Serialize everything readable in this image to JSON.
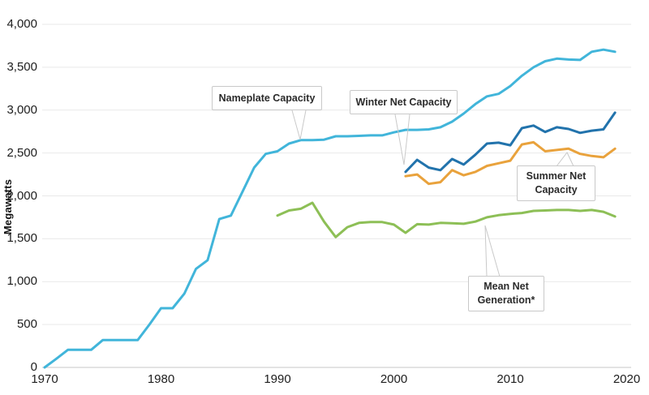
{
  "chart_data": {
    "type": "line",
    "title": "",
    "xlabel": "",
    "ylabel": "Megawatts",
    "xlim": [
      1970,
      2020
    ],
    "ylim": [
      0,
      4000
    ],
    "grid": "horizontal",
    "legend_position": "inline-callout-labels",
    "y_ticks": [
      {
        "value": 0,
        "label": "0"
      },
      {
        "value": 500,
        "label": "500"
      },
      {
        "value": 1000,
        "label": "1,000"
      },
      {
        "value": 1500,
        "label": "1,500"
      },
      {
        "value": 2000,
        "label": "2,000"
      },
      {
        "value": 2500,
        "label": "2,500"
      },
      {
        "value": 3000,
        "label": "3,000"
      },
      {
        "value": 3500,
        "label": "3,500"
      },
      {
        "value": 4000,
        "label": "4,000"
      }
    ],
    "x_ticks": [
      {
        "value": 1970,
        "label": "1970"
      },
      {
        "value": 1980,
        "label": "1980"
      },
      {
        "value": 1990,
        "label": "1990"
      },
      {
        "value": 2000,
        "label": "2000"
      },
      {
        "value": 2010,
        "label": "2010"
      },
      {
        "value": 2020,
        "label": "2020"
      }
    ],
    "series": [
      {
        "name": "Nameplate Capacity",
        "color": "#41b5da",
        "x_start": 1970,
        "x_step": 1,
        "values": [
          0,
          100,
          205,
          205,
          205,
          320,
          320,
          320,
          320,
          500,
          690,
          690,
          860,
          1150,
          1250,
          1730,
          1770,
          2050,
          2330,
          2490,
          2520,
          2610,
          2650,
          2650,
          2655,
          2695,
          2695,
          2700,
          2705,
          2705,
          2740,
          2770,
          2770,
          2775,
          2800,
          2865,
          2960,
          3070,
          3160,
          3190,
          3280,
          3400,
          3500,
          3570,
          3600,
          3590,
          3585,
          3680,
          3705,
          3680
        ]
      },
      {
        "name": "Winter Net Capacity",
        "color": "#2273ac",
        "x_start": 2001,
        "x_step": 1,
        "values": [
          2280,
          2420,
          2330,
          2300,
          2430,
          2365,
          2480,
          2610,
          2620,
          2590,
          2790,
          2820,
          2745,
          2800,
          2780,
          2735,
          2760,
          2775,
          2970
        ]
      },
      {
        "name": "Summer Net Capacity",
        "color": "#e9a23c",
        "x_start": 2001,
        "x_step": 1,
        "values": [
          2230,
          2250,
          2140,
          2160,
          2300,
          2240,
          2280,
          2350,
          2380,
          2410,
          2600,
          2625,
          2520,
          2535,
          2550,
          2490,
          2465,
          2450,
          2550
        ]
      },
      {
        "name": "Mean Net Generation*",
        "color": "#8dbf56",
        "x_start": 1990,
        "x_step": 1,
        "values": [
          1770,
          1830,
          1850,
          1920,
          1700,
          1520,
          1635,
          1685,
          1695,
          1695,
          1665,
          1570,
          1670,
          1665,
          1685,
          1680,
          1675,
          1700,
          1750,
          1775,
          1790,
          1800,
          1825,
          1830,
          1835,
          1835,
          1825,
          1835,
          1815,
          1760
        ]
      }
    ],
    "annotations": [
      {
        "label": "Nameplate Capacity",
        "target_series": "Nameplate Capacity"
      },
      {
        "label": "Winter Net Capacity",
        "target_series": "Winter Net Capacity"
      },
      {
        "label": "Summer Net Capacity",
        "target_series": "Summer Net Capacity"
      },
      {
        "label": "Mean Net Generation*",
        "target_series": "Mean Net Generation*"
      }
    ]
  }
}
